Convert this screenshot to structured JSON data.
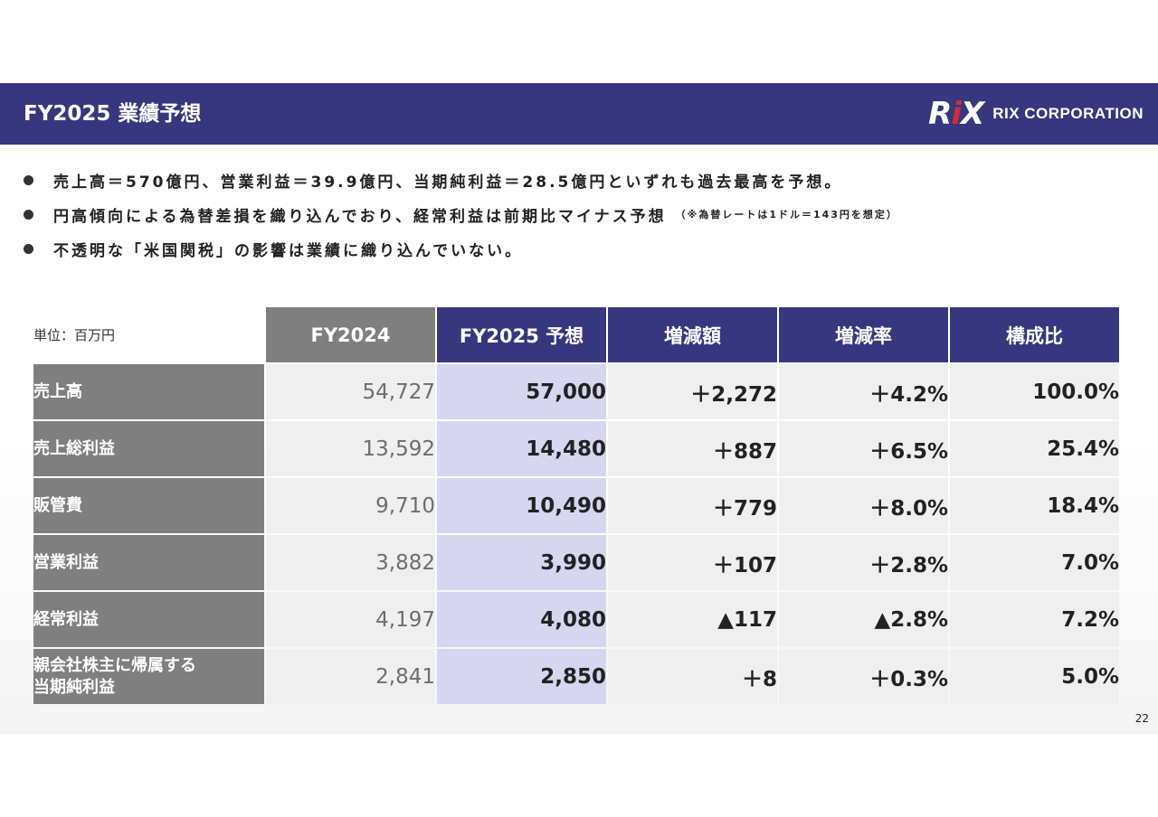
{
  "header": {
    "title": "FY2025 業績予想",
    "logo_mark_left": "R",
    "logo_mark_accent": "i",
    "logo_mark_right": "X",
    "logo_text": "RIX CORPORATION",
    "colors": {
      "bar": "#37377f",
      "accent": "#d12c3a"
    }
  },
  "bullets": [
    {
      "text": "売上高＝570億円、営業利益＝39.9億円、当期純利益＝28.5億円といずれも過去最高を予想。",
      "note": ""
    },
    {
      "text": "円高傾向による為替差損を織り込んでおり、経常利益は前期比マイナス予想",
      "note": "（※為替レートは1ドル＝143円を想定）"
    },
    {
      "text": "不透明な「米国関税」の影響は業績に織り込んでいない。",
      "note": ""
    }
  ],
  "table": {
    "unit_label": "単位：百万円",
    "columns": [
      "FY2024",
      "FY2025 予想",
      "増減額",
      "増減率",
      "構成比"
    ],
    "rows": [
      {
        "label": "売上高",
        "fy2024": "54,727",
        "fy2025": "57,000",
        "change": "＋2,272",
        "rate": "＋4.2%",
        "ratio": "100.0%"
      },
      {
        "label": "売上総利益",
        "fy2024": "13,592",
        "fy2025": "14,480",
        "change": "＋887",
        "rate": "＋6.5%",
        "ratio": "25.4%"
      },
      {
        "label": "販管費",
        "fy2024": "9,710",
        "fy2025": "10,490",
        "change": "＋779",
        "rate": "＋8.0%",
        "ratio": "18.4%"
      },
      {
        "label": "営業利益",
        "fy2024": "3,882",
        "fy2025": "3,990",
        "change": "＋107",
        "rate": "＋2.8%",
        "ratio": "7.0%"
      },
      {
        "label": "経常利益",
        "fy2024": "4,197",
        "fy2025": "4,080",
        "change": "▲117",
        "rate": "▲2.8%",
        "ratio": "7.2%"
      },
      {
        "label": "親会社株主に帰属する\n当期純利益",
        "label_line1": "親会社株主に帰属する",
        "label_line2": "当期純利益",
        "fy2024": "2,841",
        "fy2025": "2,850",
        "change": "＋8",
        "rate": "＋0.3%",
        "ratio": "5.0%"
      }
    ]
  },
  "page_number": "22"
}
